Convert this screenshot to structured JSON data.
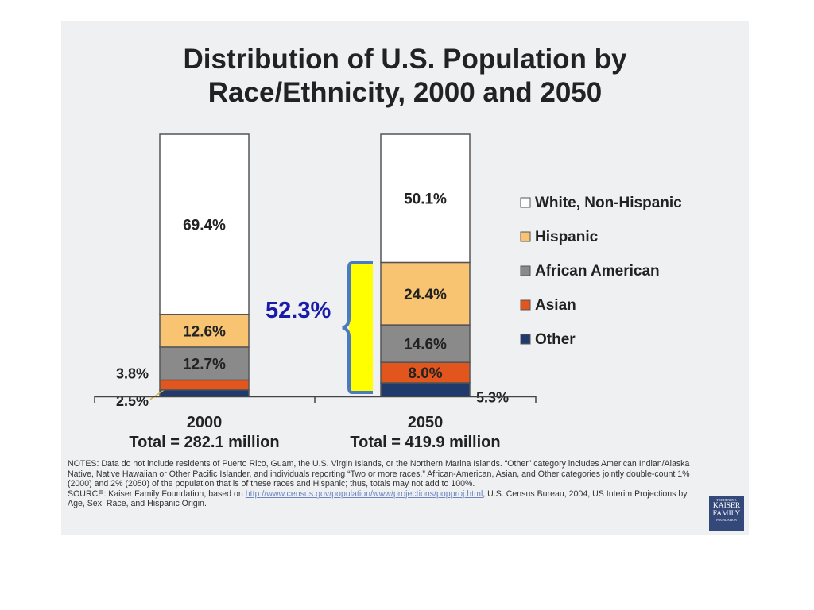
{
  "title_line1": "Distribution of U.S. Population by",
  "title_line2": "Race/Ethnicity, 2000 and 2050",
  "chart_data": {
    "type": "bar",
    "stacked": true,
    "ylim": [
      0,
      100
    ],
    "categories": [
      "2000",
      "2050"
    ],
    "category_totals": [
      "Total = 282.1 million",
      "Total = 419.9 million"
    ],
    "series": [
      {
        "name": "Other",
        "color": "#1f3a6b",
        "values": [
          2.5,
          5.3
        ],
        "labels": [
          "2.5%",
          "5.3%"
        ]
      },
      {
        "name": "Asian",
        "color": "#e2561d",
        "values": [
          3.8,
          8.0
        ],
        "labels": [
          "3.8%",
          "8.0%"
        ]
      },
      {
        "name": "African American",
        "color": "#8a8a8a",
        "values": [
          12.7,
          14.6
        ],
        "labels": [
          "12.7%",
          "14.6%"
        ]
      },
      {
        "name": "Hispanic",
        "color": "#f8c471",
        "values": [
          12.6,
          24.4
        ],
        "labels": [
          "12.6%",
          "24.4%"
        ]
      },
      {
        "name": "White, Non-Hispanic",
        "color": "#ffffff",
        "values": [
          69.4,
          50.1
        ],
        "labels": [
          "69.4%",
          "50.1%"
        ]
      }
    ],
    "legend": {
      "placement": "right",
      "order": [
        "White, Non-Hispanic",
        "Hispanic",
        "African American",
        "Asian",
        "Other"
      ]
    },
    "annotation": {
      "text": "52.3%",
      "color": "#1a1aa8",
      "bracket_color": "#4a7ac0",
      "fill_color": "#ffff00"
    }
  },
  "notes": {
    "text": "NOTES: Data do not include residents of Puerto Rico, Guam, the U.S. Virgin Islands, or the Northern Marina Islands. “Other” category includes American Indian/Alaska Native, Native Hawaiian or Other Pacific Islander, and individuals reporting “Two or more races.”  African-American, Asian, and Other categories jointly double-count 1% (2000) and 2% (2050) of the population that is of these races and Hispanic; thus, totals may not add to 100%.",
    "source_prefix": "SOURCE: Kaiser Family Foundation, based on ",
    "source_link": "http://www.census.gov/population/www/projections/popproj.html",
    "source_suffix": ", U.S. Census Bureau, 2004, US Interim Projections by Age, Sex, Race, and Hispanic Origin."
  },
  "logo": {
    "line1": "THE HENRY J.",
    "line2": "KAISER",
    "line3": "FAMILY",
    "line4": "FOUNDATION"
  }
}
